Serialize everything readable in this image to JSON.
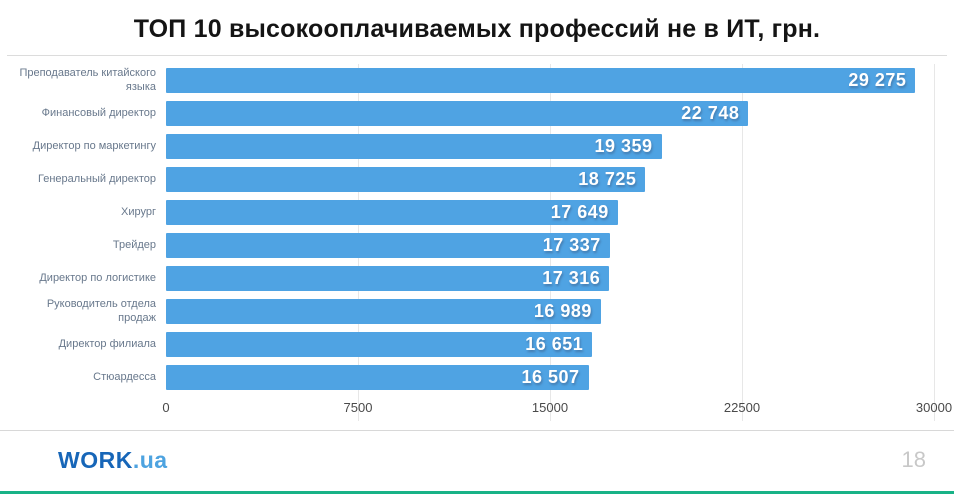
{
  "chart_data": {
    "type": "bar",
    "orientation": "horizontal",
    "title": "ТОП 10 высокооплачиваемых профессий не в ИТ, грн.",
    "categories": [
      "Преподаватель китайского языка",
      "Финансовый директор",
      "Директор по маркетингу",
      "Генеральный директор",
      "Хирург",
      "Трейдер",
      "Директор по логистике",
      "Руководитель отдела продаж",
      "Директор филиала",
      "Стюардесса"
    ],
    "values": [
      29275,
      22748,
      19359,
      18725,
      17649,
      17337,
      17316,
      16989,
      16651,
      16507
    ],
    "value_labels": [
      "29 275",
      "22 748",
      "19 359",
      "18 725",
      "17 649",
      "17 337",
      "17 316",
      "16 989",
      "16 651",
      "16 507"
    ],
    "xlim": [
      0,
      30000
    ],
    "x_ticks": [
      0,
      7500,
      15000,
      22500,
      30000
    ],
    "x_tick_labels": [
      "0",
      "7500",
      "15000",
      "22500",
      "30000"
    ],
    "bar_color": "#4fa3e3",
    "grid": true,
    "legend": false
  },
  "footer": {
    "logo_primary": "WORK",
    "logo_suffix": ".ua",
    "logo_primary_color": "#1766b8",
    "logo_suffix_color": "#4da3e0",
    "page_number": "18"
  }
}
